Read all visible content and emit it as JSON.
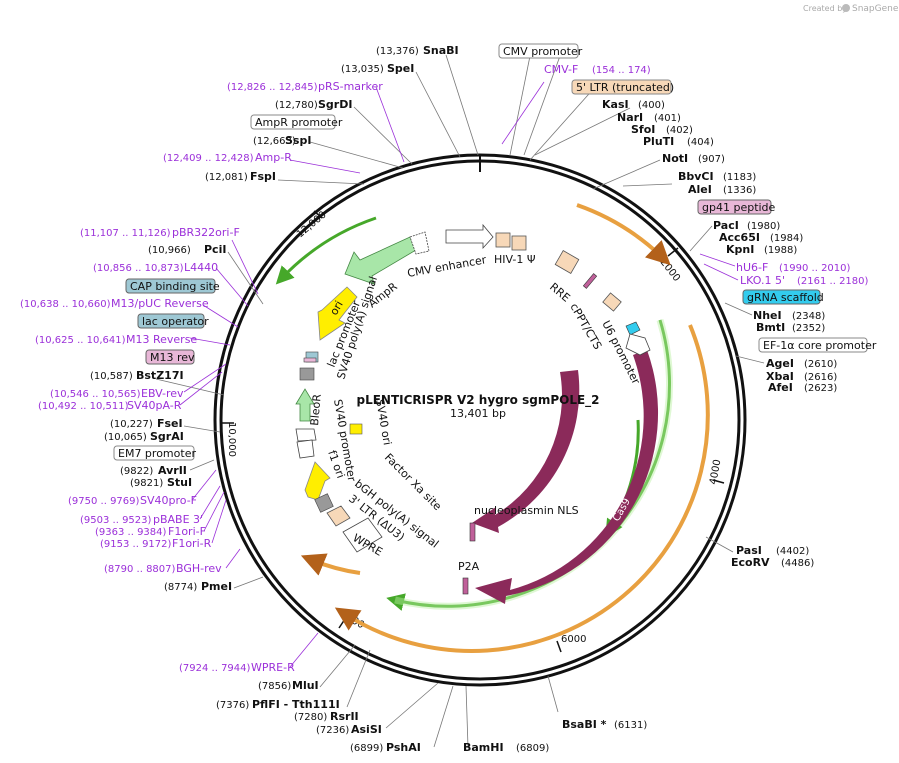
{
  "credit": {
    "prefix": "Created by",
    "product": "SnapGene"
  },
  "plasmid": {
    "name": "pLENTICRISPR V2 hygro sgmPOLE_2",
    "length": "13,401 bp"
  },
  "ruler": [
    "2000",
    "4000",
    "6000",
    "8000",
    "10,000",
    "12,000"
  ],
  "colors": {
    "backbone": "#111111",
    "primer": "#9b30d9",
    "ori": "#ffee00",
    "marker": "#a8e6a8",
    "cas9": "#8b2a5a",
    "orf_green": "#46a82a",
    "orf_orange": "#e8a040",
    "label_fill_tan": "#f7d8b8",
    "label_fill_teal": "#9ec8d4",
    "label_fill_pink": "#e8b7d7",
    "label_fill_cyan": "#33ccee"
  },
  "enzymes": [
    {
      "name": "SnaBI",
      "pos": "(13,376)"
    },
    {
      "name": "SpeI",
      "pos": "(13,035)"
    },
    {
      "name": "SgrDI",
      "pos": "(12,780)"
    },
    {
      "name": "SspI",
      "pos": "(12,663)"
    },
    {
      "name": "FspI",
      "pos": "(12,081)"
    },
    {
      "name": "PciI",
      "pos": "(10,966)"
    },
    {
      "name": "BstZ17I",
      "pos": "(10,587)"
    },
    {
      "name": "FseI",
      "pos": "(10,227)"
    },
    {
      "name": "SgrAI",
      "pos": "(10,065)"
    },
    {
      "name": "AvrII",
      "pos": "(9822)"
    },
    {
      "name": "StuI",
      "pos": "(9821)"
    },
    {
      "name": "PmeI",
      "pos": "(8774)"
    },
    {
      "name": "MluI",
      "pos": "(7856)"
    },
    {
      "name": "PflFI - Tth111I",
      "pos": "(7376)"
    },
    {
      "name": "RsrII",
      "pos": "(7280)"
    },
    {
      "name": "AsiSI",
      "pos": "(7236)"
    },
    {
      "name": "PshAI",
      "pos": "(6899)"
    },
    {
      "name": "BamHI",
      "pos": "(6809)"
    },
    {
      "name": "BsaBI *",
      "pos": "(6131)"
    },
    {
      "name": "PasI",
      "pos": "(4402)"
    },
    {
      "name": "EcoRV",
      "pos": "(4486)"
    },
    {
      "name": "AgeI",
      "pos": "(2610)"
    },
    {
      "name": "XbaI",
      "pos": "(2616)"
    },
    {
      "name": "AfeI",
      "pos": "(2623)"
    },
    {
      "name": "NheI",
      "pos": "(2348)"
    },
    {
      "name": "BmtI",
      "pos": "(2352)"
    },
    {
      "name": "PacI",
      "pos": "(1980)"
    },
    {
      "name": "Acc65I",
      "pos": "(1984)"
    },
    {
      "name": "KpnI",
      "pos": "(1988)"
    },
    {
      "name": "BbvCI",
      "pos": "(1183)"
    },
    {
      "name": "AleI",
      "pos": "(1336)"
    },
    {
      "name": "NotI",
      "pos": "(907)"
    },
    {
      "name": "KasI",
      "pos": "(400)"
    },
    {
      "name": "NarI",
      "pos": "(401)"
    },
    {
      "name": "SfoI",
      "pos": "(402)"
    },
    {
      "name": "PluTI",
      "pos": "(404)"
    }
  ],
  "primers": [
    {
      "name": "CMV-F",
      "pos": "(154 .. 174)"
    },
    {
      "name": "pRS-marker",
      "pos": "(12,826 .. 12,845)"
    },
    {
      "name": "Amp-R",
      "pos": "(12,409 .. 12,428)"
    },
    {
      "name": "pBR322ori-F",
      "pos": "(11,107 .. 11,126)"
    },
    {
      "name": "L4440",
      "pos": "(10,856 .. 10,873)"
    },
    {
      "name": "M13/pUC Reverse",
      "pos": "(10,638 .. 10,660)"
    },
    {
      "name": "M13 Reverse",
      "pos": "(10,625 .. 10,641)"
    },
    {
      "name": "EBV-rev",
      "pos": "(10,546 .. 10,565)"
    },
    {
      "name": "SV40pA-R",
      "pos": "(10,492 .. 10,511)"
    },
    {
      "name": "SV40pro-F",
      "pos": "(9750 .. 9769)"
    },
    {
      "name": "pBABE 3'",
      "pos": "(9503 .. 9523)"
    },
    {
      "name": "F1ori-F",
      "pos": "(9363 .. 9384)"
    },
    {
      "name": "F1ori-R",
      "pos": "(9153 .. 9172)"
    },
    {
      "name": "BGH-rev",
      "pos": "(8790 .. 8807)"
    },
    {
      "name": "WPRE-R",
      "pos": "(7924 .. 7944)"
    },
    {
      "name": "hU6-F",
      "pos": "(1990 .. 2010)"
    },
    {
      "name": "LKO.1 5'",
      "pos": "(2161 .. 2180)"
    }
  ],
  "boxed": {
    "cmv_promoter": "CMV promoter",
    "ltr5": "5' LTR (truncated)",
    "ampr_promoter": "AmpR promoter",
    "cap_site": "CAP binding site",
    "lac_operator": "lac operator",
    "m13_rev": "M13 rev",
    "em7_promoter": "EM7 promoter",
    "gp41": "gp41 peptide",
    "grna": "gRNA scaffold",
    "ef1a": "EF-1α core promoter"
  },
  "inner": {
    "cmv_enhancer": "CMV enhancer",
    "hiv_psi": "HIV-1 Ψ",
    "rre": "RRE",
    "cppt": "cPPT/CTS",
    "u6": "U6 promoter",
    "ampr": "AmpR",
    "ori": "ori",
    "lac_promoter": "lac promoter",
    "sv40_polya": "SV40 poly(A) signal",
    "bleor": "BleoR",
    "sv40_promoter": "SV40 promoter",
    "f1_ori": "f1 ori",
    "sv40_ori": "SV40 ori",
    "factor_xa": "Factor Xa site",
    "bgh": "bGH poly(A) signal",
    "ltr3": "3' LTR (ΔU3)",
    "wpre": "WPRE",
    "nls": "nucleoplasmin NLS",
    "cas9_a": "Cas9",
    "cas9_b": "Cas9",
    "p2a": "P2A"
  }
}
